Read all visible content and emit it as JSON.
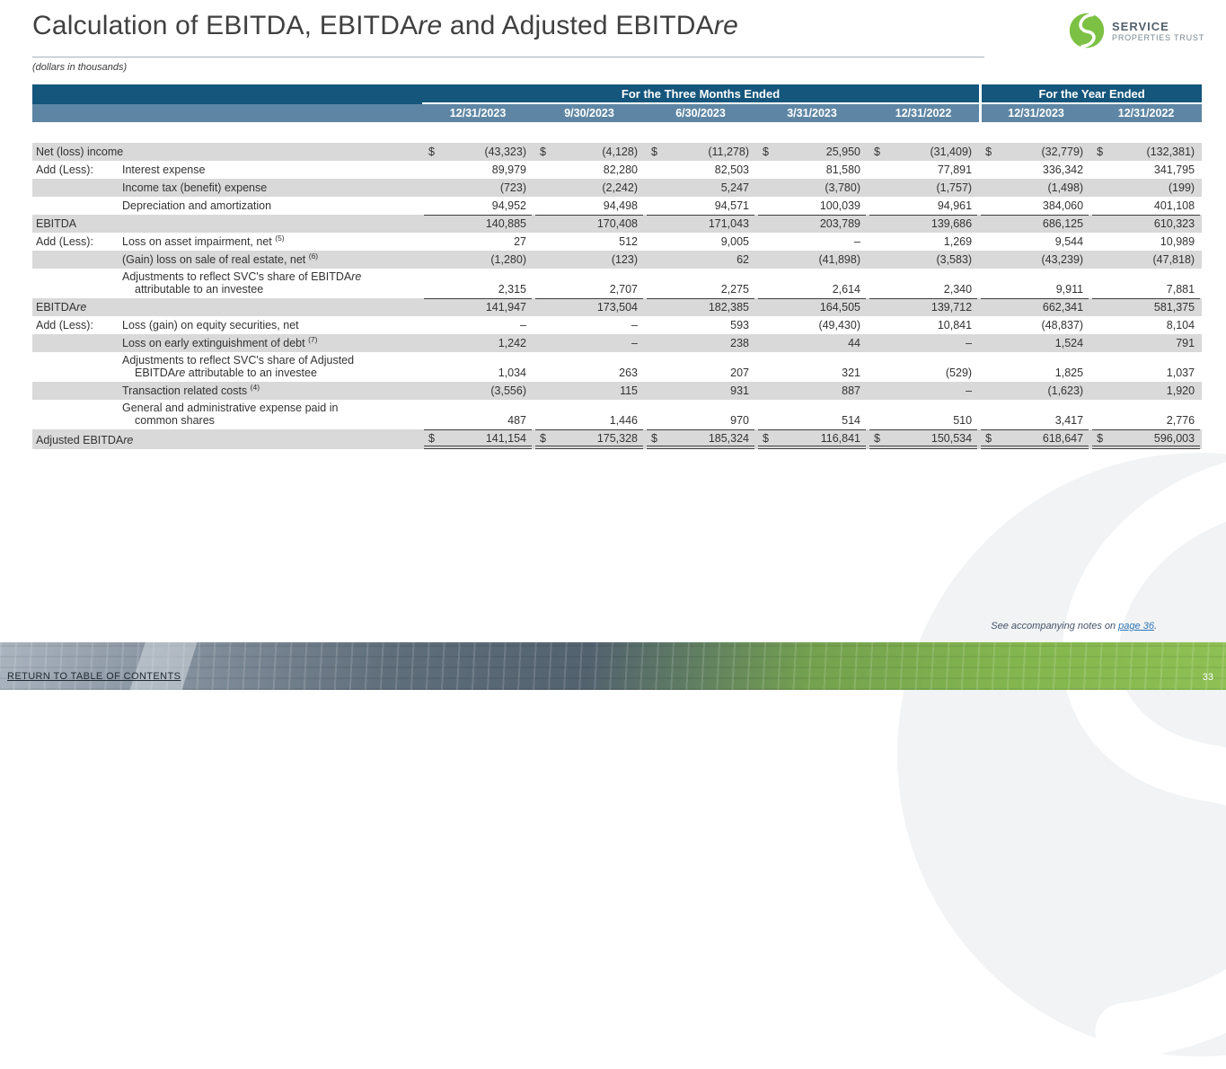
{
  "page": {
    "title_parts": [
      "Calculation of EBITDA, EBITDA",
      "re",
      " and Adjusted EBITDA",
      "re"
    ],
    "subtitle": "(dollars in thousands)",
    "footnote_prefix": "See accompanying notes on ",
    "footnote_link": "page 36",
    "footnote_suffix": ".",
    "return_link": "RETURN TO TABLE OF CONTENTS",
    "page_number": "33"
  },
  "logo": {
    "name": "SERVICE",
    "subname": "PROPERTIES TRUST",
    "icon": "svc-swirl-icon"
  },
  "colors": {
    "header_teal": "#15567c",
    "header_blue": "#5e86a4",
    "row_shade": "#d9d9d9",
    "logo_green": "#7cc143",
    "link_blue": "#2e75b6"
  },
  "table": {
    "groups": [
      {
        "label": "For the Three Months Ended",
        "span": 5
      },
      {
        "label": "For the Year Ended",
        "span": 2
      }
    ],
    "columns": [
      "12/31/2023",
      "9/30/2023",
      "6/30/2023",
      "3/31/2023",
      "12/31/2022",
      "12/31/2023",
      "12/31/2022"
    ],
    "rows": [
      {
        "wide": true,
        "label": "Net (loss) income",
        "dollar": true,
        "shaded": true,
        "values": [
          "(43,323)",
          "(4,128)",
          "(11,278)",
          "25,950",
          "(31,409)",
          "(32,779)",
          "(132,381)"
        ]
      },
      {
        "prefix": "Add (Less):",
        "label": "Interest expense",
        "shaded": false,
        "values": [
          "89,979",
          "82,280",
          "82,503",
          "81,580",
          "77,891",
          "336,342",
          "341,795"
        ]
      },
      {
        "prefix": "",
        "label": "Income tax (benefit) expense",
        "shaded": true,
        "values": [
          "(723)",
          "(2,242)",
          "5,247",
          "(3,780)",
          "(1,757)",
          "(1,498)",
          "(199)"
        ]
      },
      {
        "prefix": "",
        "label": "Depreciation and amortization",
        "shaded": false,
        "values": [
          "94,952",
          "94,498",
          "94,571",
          "100,039",
          "94,961",
          "384,060",
          "401,108"
        ]
      },
      {
        "wide": true,
        "label": "EBITDA",
        "shaded": true,
        "total": true,
        "values": [
          "140,885",
          "170,408",
          "171,043",
          "203,789",
          "139,686",
          "686,125",
          "610,323"
        ]
      },
      {
        "prefix": "Add (Less):",
        "label": "Loss on asset impairment, net",
        "sup": "(5)",
        "shaded": false,
        "values": [
          "27",
          "512",
          "9,005",
          "–",
          "1,269",
          "9,544",
          "10,989"
        ]
      },
      {
        "prefix": "",
        "label": "(Gain) loss on sale of real estate, net",
        "sup": "(6)",
        "shaded": true,
        "values": [
          "(1,280)",
          "(123)",
          "62",
          "(41,898)",
          "(3,583)",
          "(43,239)",
          "(47,818)"
        ]
      },
      {
        "prefix": "",
        "label": "Adjustments to reflect SVC's share of EBITDAre",
        "label2": "attributable to an investee",
        "shaded": false,
        "values": [
          "2,315",
          "2,707",
          "2,275",
          "2,614",
          "2,340",
          "9,911",
          "7,881"
        ]
      },
      {
        "wide": true,
        "label": "EBITDAre",
        "shaded": true,
        "total": true,
        "values": [
          "141,947",
          "173,504",
          "182,385",
          "164,505",
          "139,712",
          "662,341",
          "581,375"
        ]
      },
      {
        "prefix": "Add (Less):",
        "label": "Loss (gain) on equity securities, net",
        "shaded": false,
        "values": [
          "–",
          "–",
          "593",
          "(49,430)",
          "10,841",
          "(48,837)",
          "8,104"
        ]
      },
      {
        "prefix": "",
        "label": "Loss on early extinguishment of debt",
        "sup": "(7)",
        "shaded": true,
        "values": [
          "1,242",
          "–",
          "238",
          "44",
          "–",
          "1,524",
          "791"
        ]
      },
      {
        "prefix": "",
        "label": "Adjustments to reflect SVC's share of Adjusted",
        "label2": "EBITDAre attributable to an investee",
        "shaded": false,
        "values": [
          "1,034",
          "263",
          "207",
          "321",
          "(529)",
          "1,825",
          "1,037"
        ]
      },
      {
        "prefix": "",
        "label": "Transaction related costs",
        "sup": "(4)",
        "shaded": true,
        "values": [
          "(3,556)",
          "115",
          "931",
          "887",
          "–",
          "(1,623)",
          "1,920"
        ]
      },
      {
        "prefix": "",
        "label": "General and administrative expense paid in",
        "label2": "common shares",
        "shaded": false,
        "values": [
          "487",
          "1,446",
          "970",
          "514",
          "510",
          "3,417",
          "2,776"
        ]
      },
      {
        "wide": true,
        "label": "Adjusted EBITDAre",
        "shaded": true,
        "grand": true,
        "dollar": true,
        "values": [
          "141,154",
          "175,328",
          "185,324",
          "116,841",
          "150,534",
          "618,647",
          "596,003"
        ]
      }
    ]
  }
}
